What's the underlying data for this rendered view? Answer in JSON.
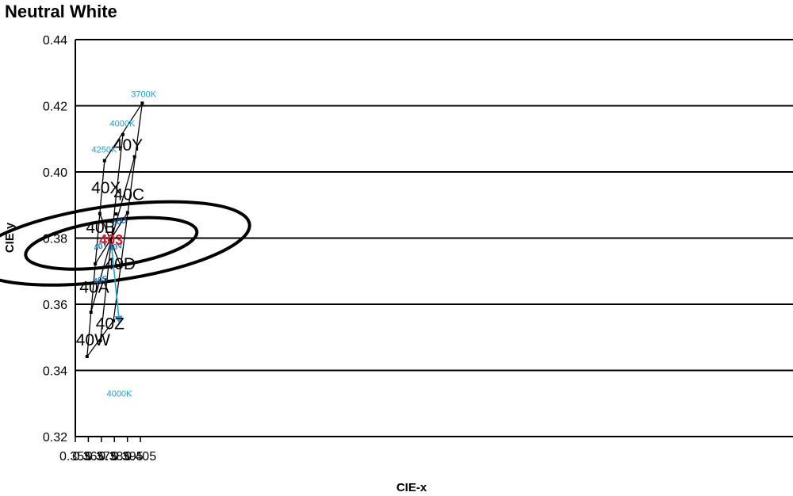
{
  "chart_data": {
    "type": "scatter",
    "title": "Neutral White",
    "xlabel": "CIE-x",
    "ylabel": "CIE-y",
    "xlim": [
      0.355,
      0.41
    ],
    "ylim": [
      0.32,
      0.44
    ],
    "x_ticks": [
      "0.355",
      "0.365",
      "0.375",
      "0.385",
      "0.395",
      "0.405"
    ],
    "y_ticks": [
      "0.44",
      "0.42",
      "0.40",
      "0.38",
      "0.36",
      "0.34",
      "0.32"
    ],
    "grid": "horizontal",
    "outer_quadrilateral": [
      [
        0.364,
        0.3442
      ],
      [
        0.3774,
        0.4034
      ],
      [
        0.4064,
        0.4208
      ],
      [
        0.3843,
        0.355
      ]
    ],
    "bin_lines": [
      {
        "from": [
          0.3742,
          0.349
        ],
        "to": [
          0.3915,
          0.4113
        ]
      },
      {
        "from": [
          0.367,
          0.3576
        ],
        "to": [
          0.4005,
          0.4046
        ]
      },
      {
        "from": [
          0.3703,
          0.3722
        ],
        "to": [
          0.3951,
          0.3877
        ]
      },
      {
        "from": [
          0.3738,
          0.3874
        ],
        "to": [
          0.3899,
          0.3715
        ]
      }
    ],
    "vertices": [
      [
        0.364,
        0.3442
      ],
      [
        0.3774,
        0.4034
      ],
      [
        0.4064,
        0.4208
      ],
      [
        0.3843,
        0.355
      ],
      [
        0.3742,
        0.349
      ],
      [
        0.3915,
        0.4113
      ],
      [
        0.367,
        0.3576
      ],
      [
        0.4005,
        0.4046
      ],
      [
        0.3703,
        0.3722
      ],
      [
        0.3951,
        0.3877
      ],
      [
        0.3738,
        0.3874
      ],
      [
        0.3899,
        0.3715
      ],
      [
        0.3787,
        0.3674
      ],
      [
        0.3863,
        0.3873
      ],
      [
        0.3826,
        0.3784
      ]
    ],
    "ellipses": [
      {
        "name": "outer",
        "cx": 0.3826,
        "cy": 0.3784,
        "rx_px": 176,
        "ry_px": 47,
        "rotation_deg": -8
      },
      {
        "name": "inner",
        "cx": 0.3826,
        "cy": 0.3784,
        "rx_px": 109,
        "ry_px": 29,
        "rotation_deg": -8
      }
    ],
    "bin_labels": [
      {
        "text": "40X",
        "x": 0.3786,
        "y": 0.3935
      },
      {
        "text": "40Y",
        "x": 0.3955,
        "y": 0.4065
      },
      {
        "text": "40B",
        "x": 0.3745,
        "y": 0.3815
      },
      {
        "text": "40C",
        "x": 0.3963,
        "y": 0.3915
      },
      {
        "text": "40A",
        "x": 0.3696,
        "y": 0.3635
      },
      {
        "text": "40D",
        "x": 0.3896,
        "y": 0.3705
      },
      {
        "text": "40W",
        "x": 0.3686,
        "y": 0.3475
      },
      {
        "text": "40Z",
        "x": 0.3817,
        "y": 0.3525
      }
    ],
    "sub_bin_labels": [
      {
        "text": "40T",
        "x": 0.3749,
        "y": 0.3768
      },
      {
        "text": "40U",
        "x": 0.3895,
        "y": 0.3842
      },
      {
        "text": "40S",
        "x": 0.3749,
        "y": 0.3666
      },
      {
        "text": "40V",
        "x": 0.3865,
        "y": 0.3766
      }
    ],
    "center_bin": {
      "text": "403",
      "x": 0.3825,
      "y": 0.378
    },
    "cct_labels": [
      {
        "text": "4250K",
        "x": 0.3772,
        "y": 0.4059
      },
      {
        "text": "4000K",
        "x": 0.3912,
        "y": 0.4138
      },
      {
        "text": "3700K",
        "x": 0.4075,
        "y": 0.4226
      },
      {
        "text": "4000K",
        "x": 0.3888,
        "y": 0.3321
      }
    ],
    "cct_arrow": {
      "from": [
        0.3826,
        0.3784
      ],
      "to": [
        0.3887,
        0.3548
      ]
    },
    "colors": {
      "grid": "#000000",
      "lines": "#000000",
      "ellipse": "#000000",
      "cct": "#1aa0e0",
      "sub_bin": "#1b76c4",
      "center": "#d81e2c"
    }
  }
}
